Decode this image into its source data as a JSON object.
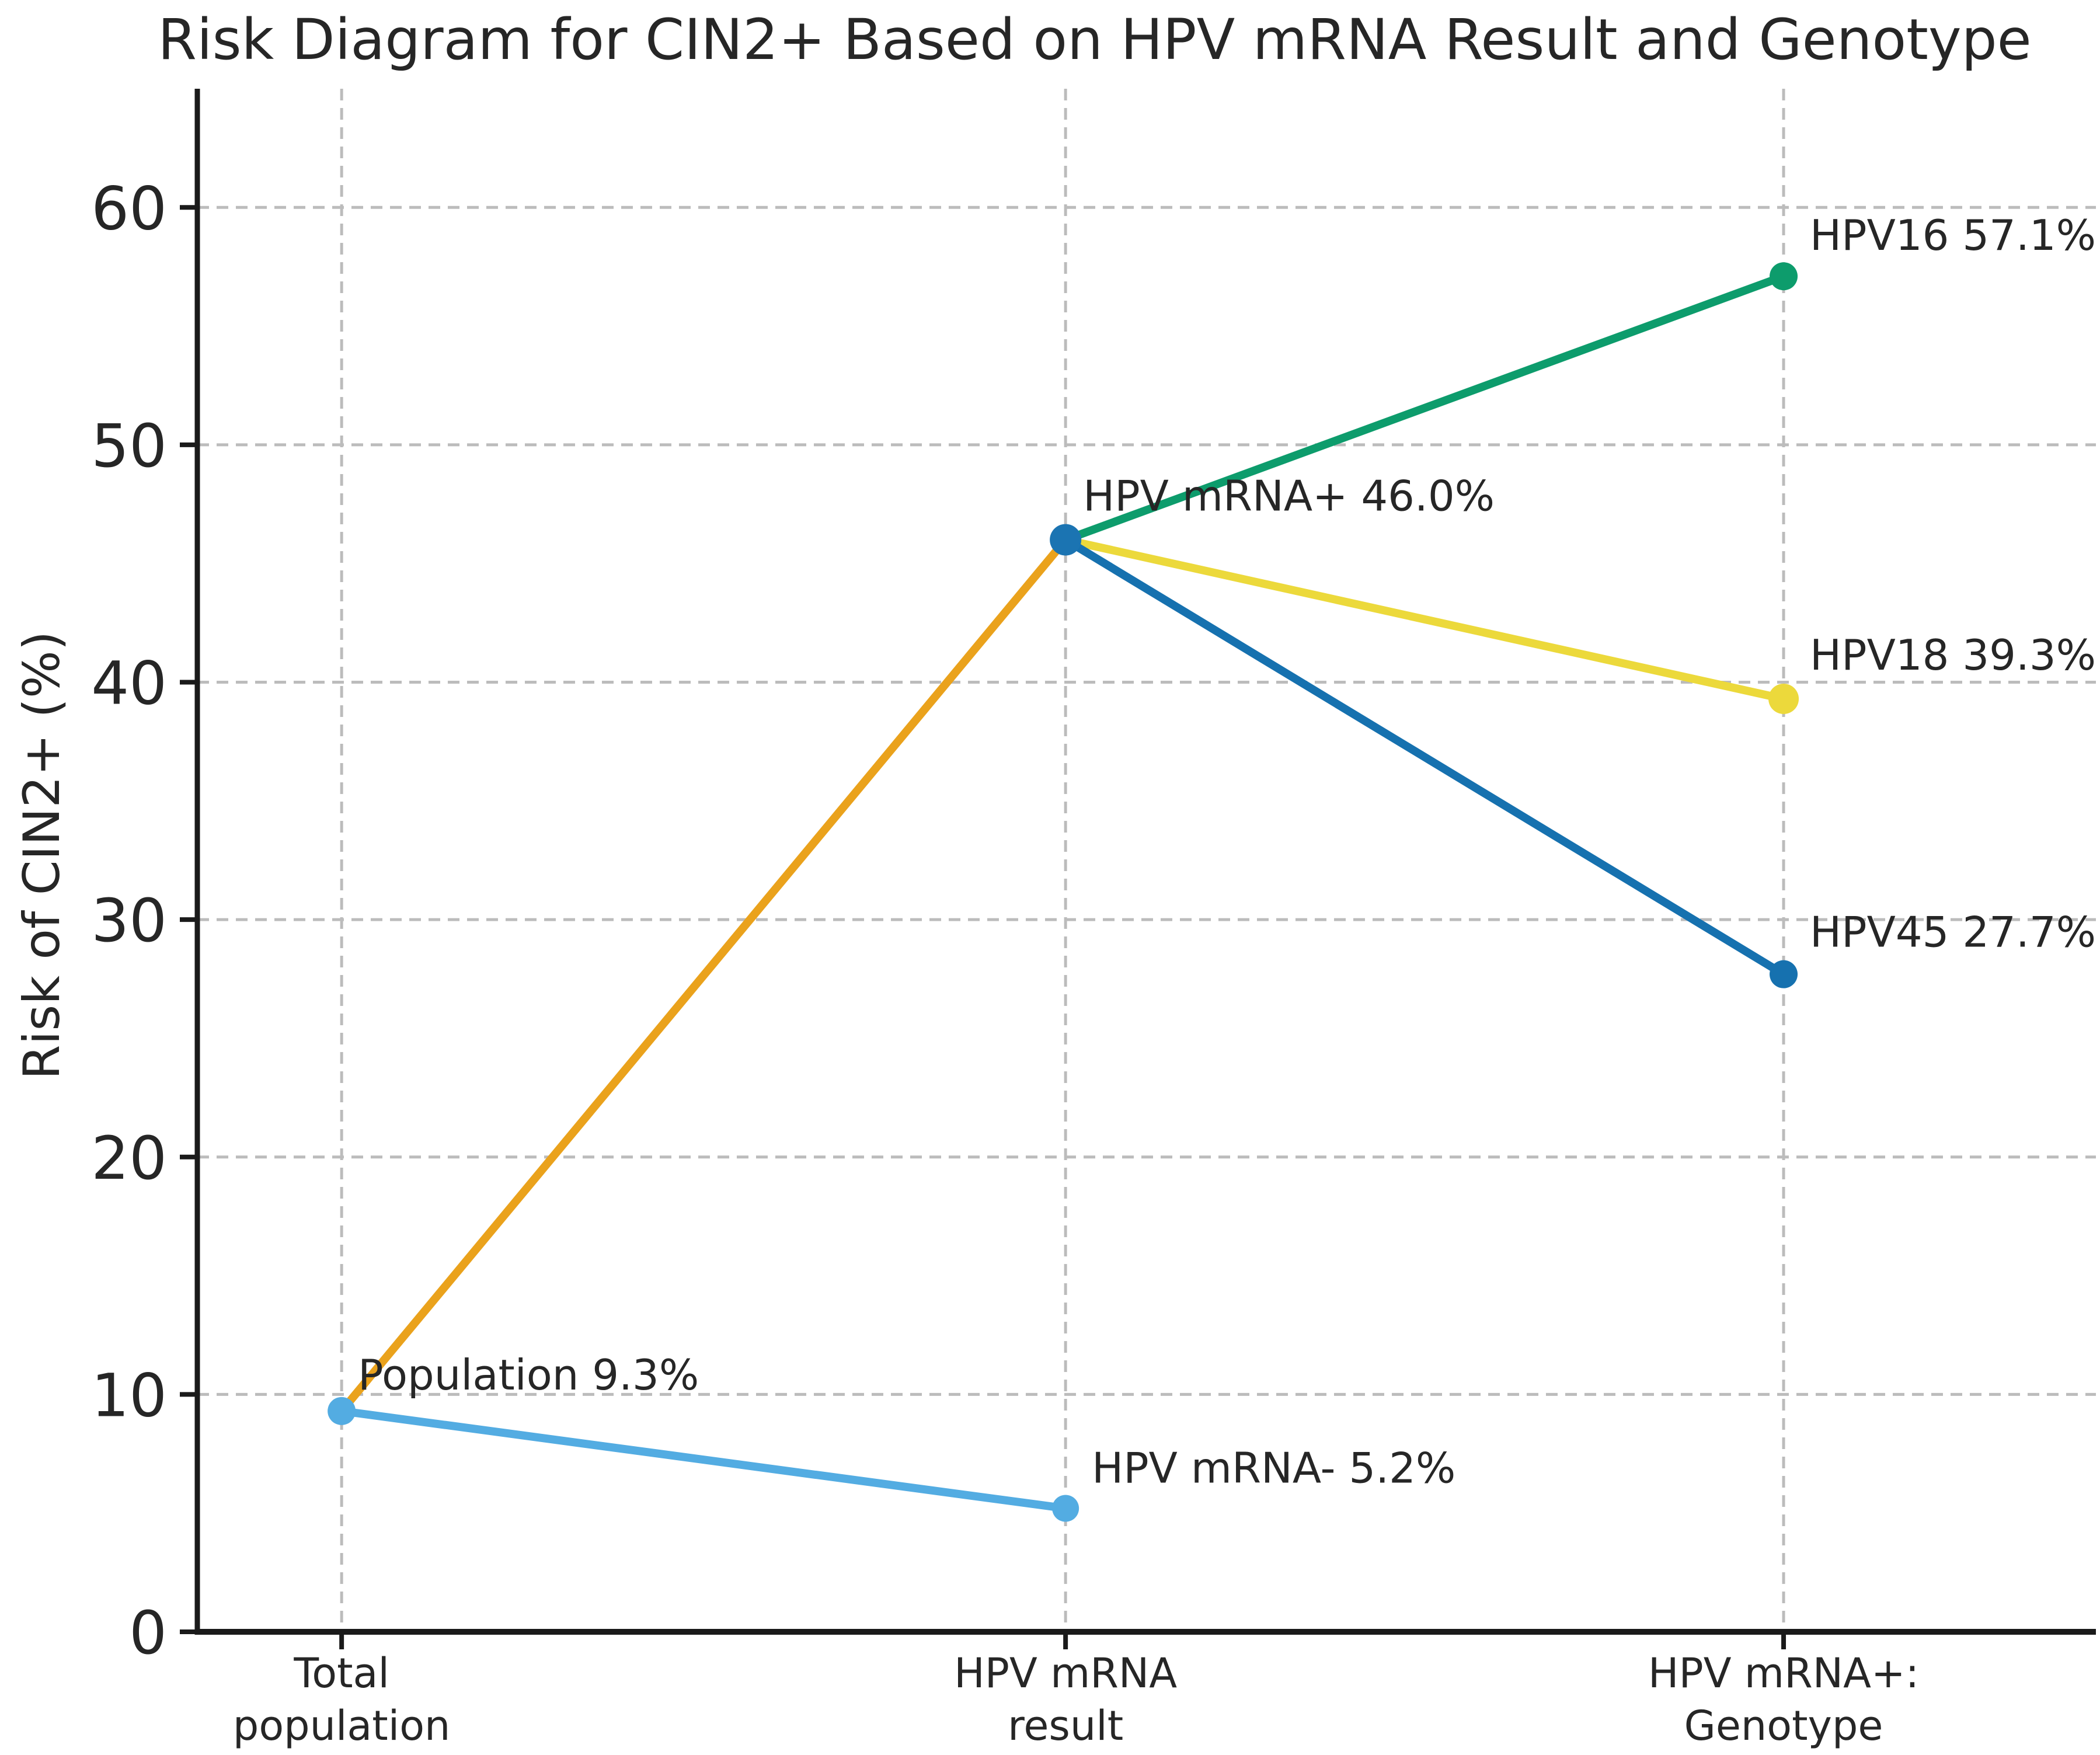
{
  "title": "Risk Diagram for CIN2+ Based on HPV mRNA Result and Genotype",
  "chart_data": {
    "type": "line",
    "title": "Risk Diagram for CIN2+ Based on HPV mRNA Result and Genotype",
    "xlabel": "",
    "ylabel": "Risk of CIN2+ (%)",
    "ylim": [
      0,
      65
    ],
    "yticks": [
      0,
      10,
      20,
      30,
      40,
      50,
      60
    ],
    "grid": true,
    "grid_style": "dashed",
    "legend": "none",
    "categories": [
      "Total\npopulation",
      "HPV mRNA\nresult",
      "HPV mRNA+:\nGenotype"
    ],
    "nodes": [
      {
        "id": "population",
        "category_index": 0,
        "value": 9.3,
        "label": "Population 9.3%",
        "color": "#53ace2"
      },
      {
        "id": "mrna_neg",
        "category_index": 1,
        "value": 5.2,
        "label": "HPV mRNA- 5.2%",
        "color": "#53ace2"
      },
      {
        "id": "mrna_pos",
        "category_index": 1,
        "value": 46.0,
        "label": "HPV mRNA+ 46.0%",
        "color": "#1b74b2"
      },
      {
        "id": "hpv16",
        "category_index": 2,
        "value": 57.1,
        "label": "HPV16 57.1%",
        "color": "#0d9c6c"
      },
      {
        "id": "hpv18",
        "category_index": 2,
        "value": 39.3,
        "label": "HPV18 39.3%",
        "color": "#ecd93b"
      },
      {
        "id": "hpv45",
        "category_index": 2,
        "value": 27.7,
        "label": "HPV45 27.7%",
        "color": "#1671af"
      }
    ],
    "edges": [
      {
        "from": "population",
        "to": "mrna_neg",
        "color": "#53ace2"
      },
      {
        "from": "population",
        "to": "mrna_pos",
        "color": "#eaa21c"
      },
      {
        "from": "mrna_pos",
        "to": "hpv16",
        "color": "#0d9c6c"
      },
      {
        "from": "mrna_pos",
        "to": "hpv18",
        "color": "#ecd93b"
      },
      {
        "from": "mrna_pos",
        "to": "hpv45",
        "color": "#1671af"
      }
    ],
    "colors": {
      "grid": "#bcbcbc",
      "spine": "#1a1a1a",
      "text": "#262626",
      "background": "#ffffff"
    }
  }
}
